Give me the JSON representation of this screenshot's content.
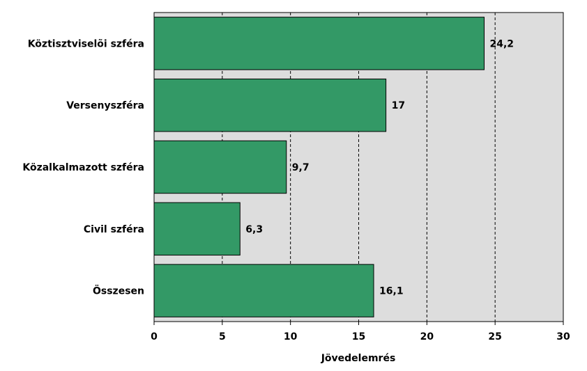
{
  "chart_data": {
    "type": "bar",
    "orientation": "horizontal",
    "categories": [
      "Köztisztviselõi szféra",
      "Versenyszféra",
      "Közalkalmazott szféra",
      "Civil szféra",
      "Összesen"
    ],
    "values": [
      24.2,
      17,
      9.7,
      6.3,
      16.1
    ],
    "value_labels": [
      "24,2",
      "17",
      "9,7",
      "6,3",
      "16,1"
    ],
    "xticks": [
      0,
      5,
      10,
      15,
      20,
      25,
      30
    ],
    "xlim": [
      0,
      30
    ],
    "xlabel": "Jövedelemrés",
    "ylabel": "",
    "title": "",
    "grid": "vertical dashed",
    "legend": "none",
    "colors": {
      "bar": "#339966",
      "plot_background": "#dddddd",
      "gridline": "#000000"
    }
  }
}
